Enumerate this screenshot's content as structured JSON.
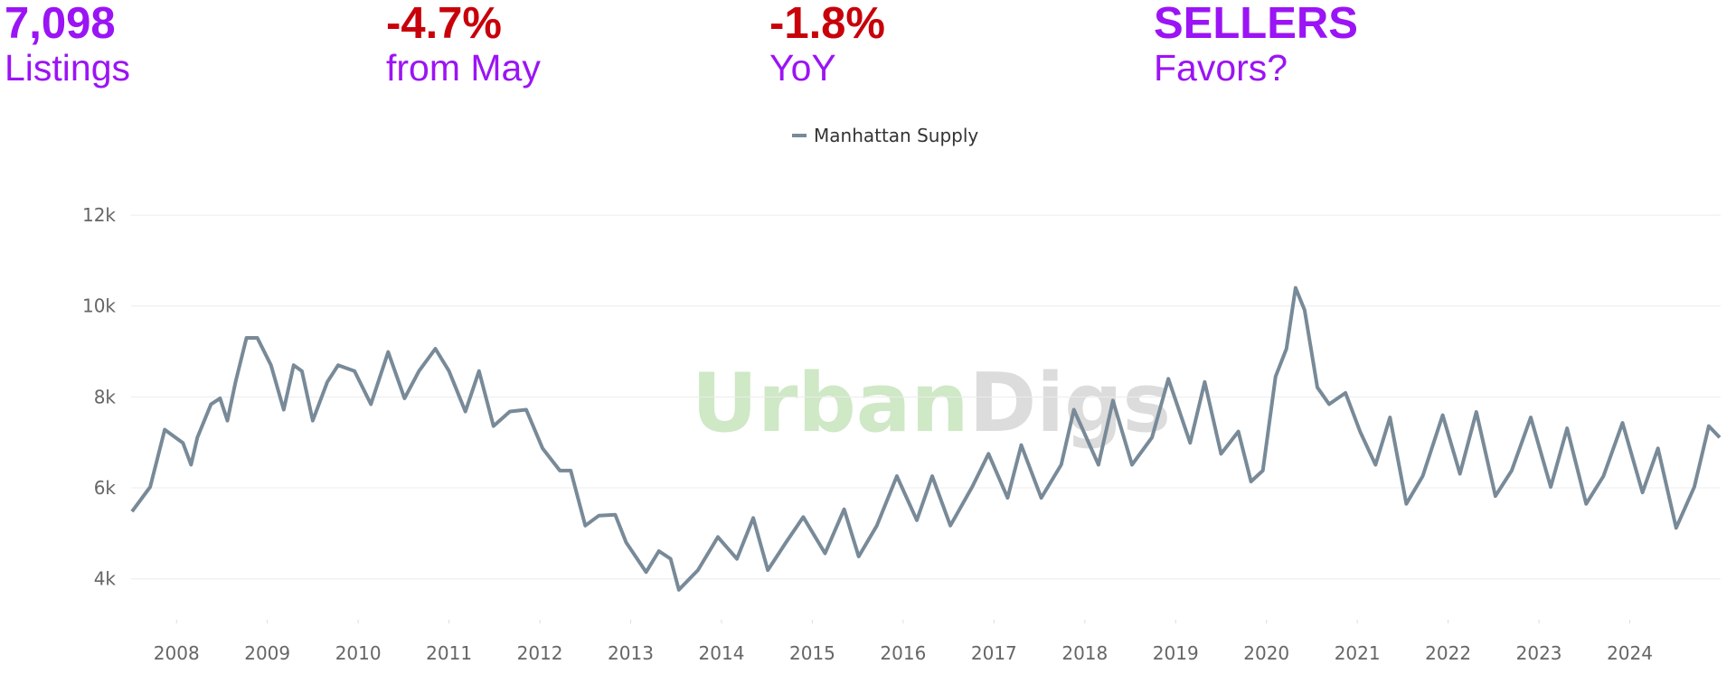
{
  "stats": [
    {
      "value": "7,098",
      "label": "Listings",
      "color": "#9b14f5"
    },
    {
      "value": "-4.7%",
      "label": "from May",
      "color": "#c8000a"
    },
    {
      "value": "-1.8%",
      "label": "YoY",
      "color": "#c8000a"
    },
    {
      "value": "SELLERS",
      "label": "Favors?",
      "color": "#9b14f5"
    }
  ],
  "chart_data": {
    "type": "line",
    "watermark": "UrbanDigs",
    "legend": "top",
    "grid": true,
    "xlim": [
      2007.5,
      2025
    ],
    "ylim": [
      3100,
      12200
    ],
    "xticks": [
      2008,
      2009,
      2010,
      2011,
      2012,
      2013,
      2014,
      2015,
      2016,
      2017,
      2018,
      2019,
      2020,
      2021,
      2022,
      2023,
      2024
    ],
    "yticks": [
      {
        "value": 4000,
        "label": "4k"
      },
      {
        "value": 6000,
        "label": "6k"
      },
      {
        "value": 8000,
        "label": "8k"
      },
      {
        "value": 10000,
        "label": "10k"
      },
      {
        "value": 12000,
        "label": "12k"
      }
    ],
    "x": [
      2007.51,
      2007.71,
      2007.87,
      2008.07,
      2008.16,
      2008.23,
      2008.38,
      2008.48,
      2008.56,
      2008.65,
      2008.77,
      2008.89,
      2009.04,
      2009.18,
      2009.29,
      2009.38,
      2009.5,
      2009.66,
      2009.78,
      2009.96,
      2010.14,
      2010.33,
      2010.51,
      2010.67,
      2010.85,
      2011.0,
      2011.18,
      2011.33,
      2011.49,
      2011.67,
      2011.85,
      2012.03,
      2012.22,
      2012.34,
      2012.5,
      2012.65,
      2012.83,
      2012.95,
      2013.17,
      2013.31,
      2013.44,
      2013.53,
      2013.74,
      2013.96,
      2014.17,
      2014.35,
      2014.51,
      2014.71,
      2014.9,
      2015.14,
      2015.35,
      2015.51,
      2015.71,
      2015.93,
      2016.15,
      2016.32,
      2016.52,
      2016.76,
      2016.94,
      2017.15,
      2017.3,
      2017.52,
      2017.74,
      2017.88,
      2018.15,
      2018.31,
      2018.52,
      2018.74,
      2018.92,
      2019.16,
      2019.32,
      2019.5,
      2019.69,
      2019.83,
      2019.96,
      2020.1,
      2020.22,
      2020.32,
      2020.42,
      2020.56,
      2020.69,
      2020.87,
      2021.03,
      2021.2,
      2021.36,
      2021.54,
      2021.72,
      2021.94,
      2022.13,
      2022.31,
      2022.52,
      2022.7,
      2022.91,
      2023.13,
      2023.31,
      2023.52,
      2023.71,
      2023.92,
      2024.14,
      2024.31,
      2024.51,
      2024.71,
      2024.87,
      2024.99
    ],
    "series": [
      {
        "name": "Manhattan Supply",
        "color": "#788a98",
        "values": [
          5480,
          6020,
          7280,
          6990,
          6510,
          7110,
          7840,
          7970,
          7480,
          8330,
          9300,
          9300,
          8700,
          7720,
          8700,
          8570,
          7480,
          8330,
          8700,
          8570,
          7840,
          8990,
          7970,
          8570,
          9060,
          8570,
          7680,
          8570,
          7360,
          7680,
          7720,
          6870,
          6380,
          6380,
          5170,
          5390,
          5410,
          4800,
          4150,
          4610,
          4440,
          3760,
          4190,
          4920,
          4440,
          5340,
          4190,
          4800,
          5360,
          4560,
          5530,
          4490,
          5170,
          6260,
          5290,
          6260,
          5170,
          6020,
          6750,
          5780,
          6940,
          5780,
          6510,
          7720,
          6510,
          7920,
          6510,
          7110,
          8400,
          6990,
          8330,
          6750,
          7240,
          6140,
          6380,
          8450,
          9060,
          10400,
          9910,
          8210,
          7840,
          8090,
          7240,
          6510,
          7550,
          5650,
          6260,
          7600,
          6310,
          7670,
          5820,
          6380,
          7550,
          6020,
          7310,
          5650,
          6260,
          7430,
          5900,
          6870,
          5120,
          6020,
          7360,
          7110
        ]
      }
    ]
  }
}
